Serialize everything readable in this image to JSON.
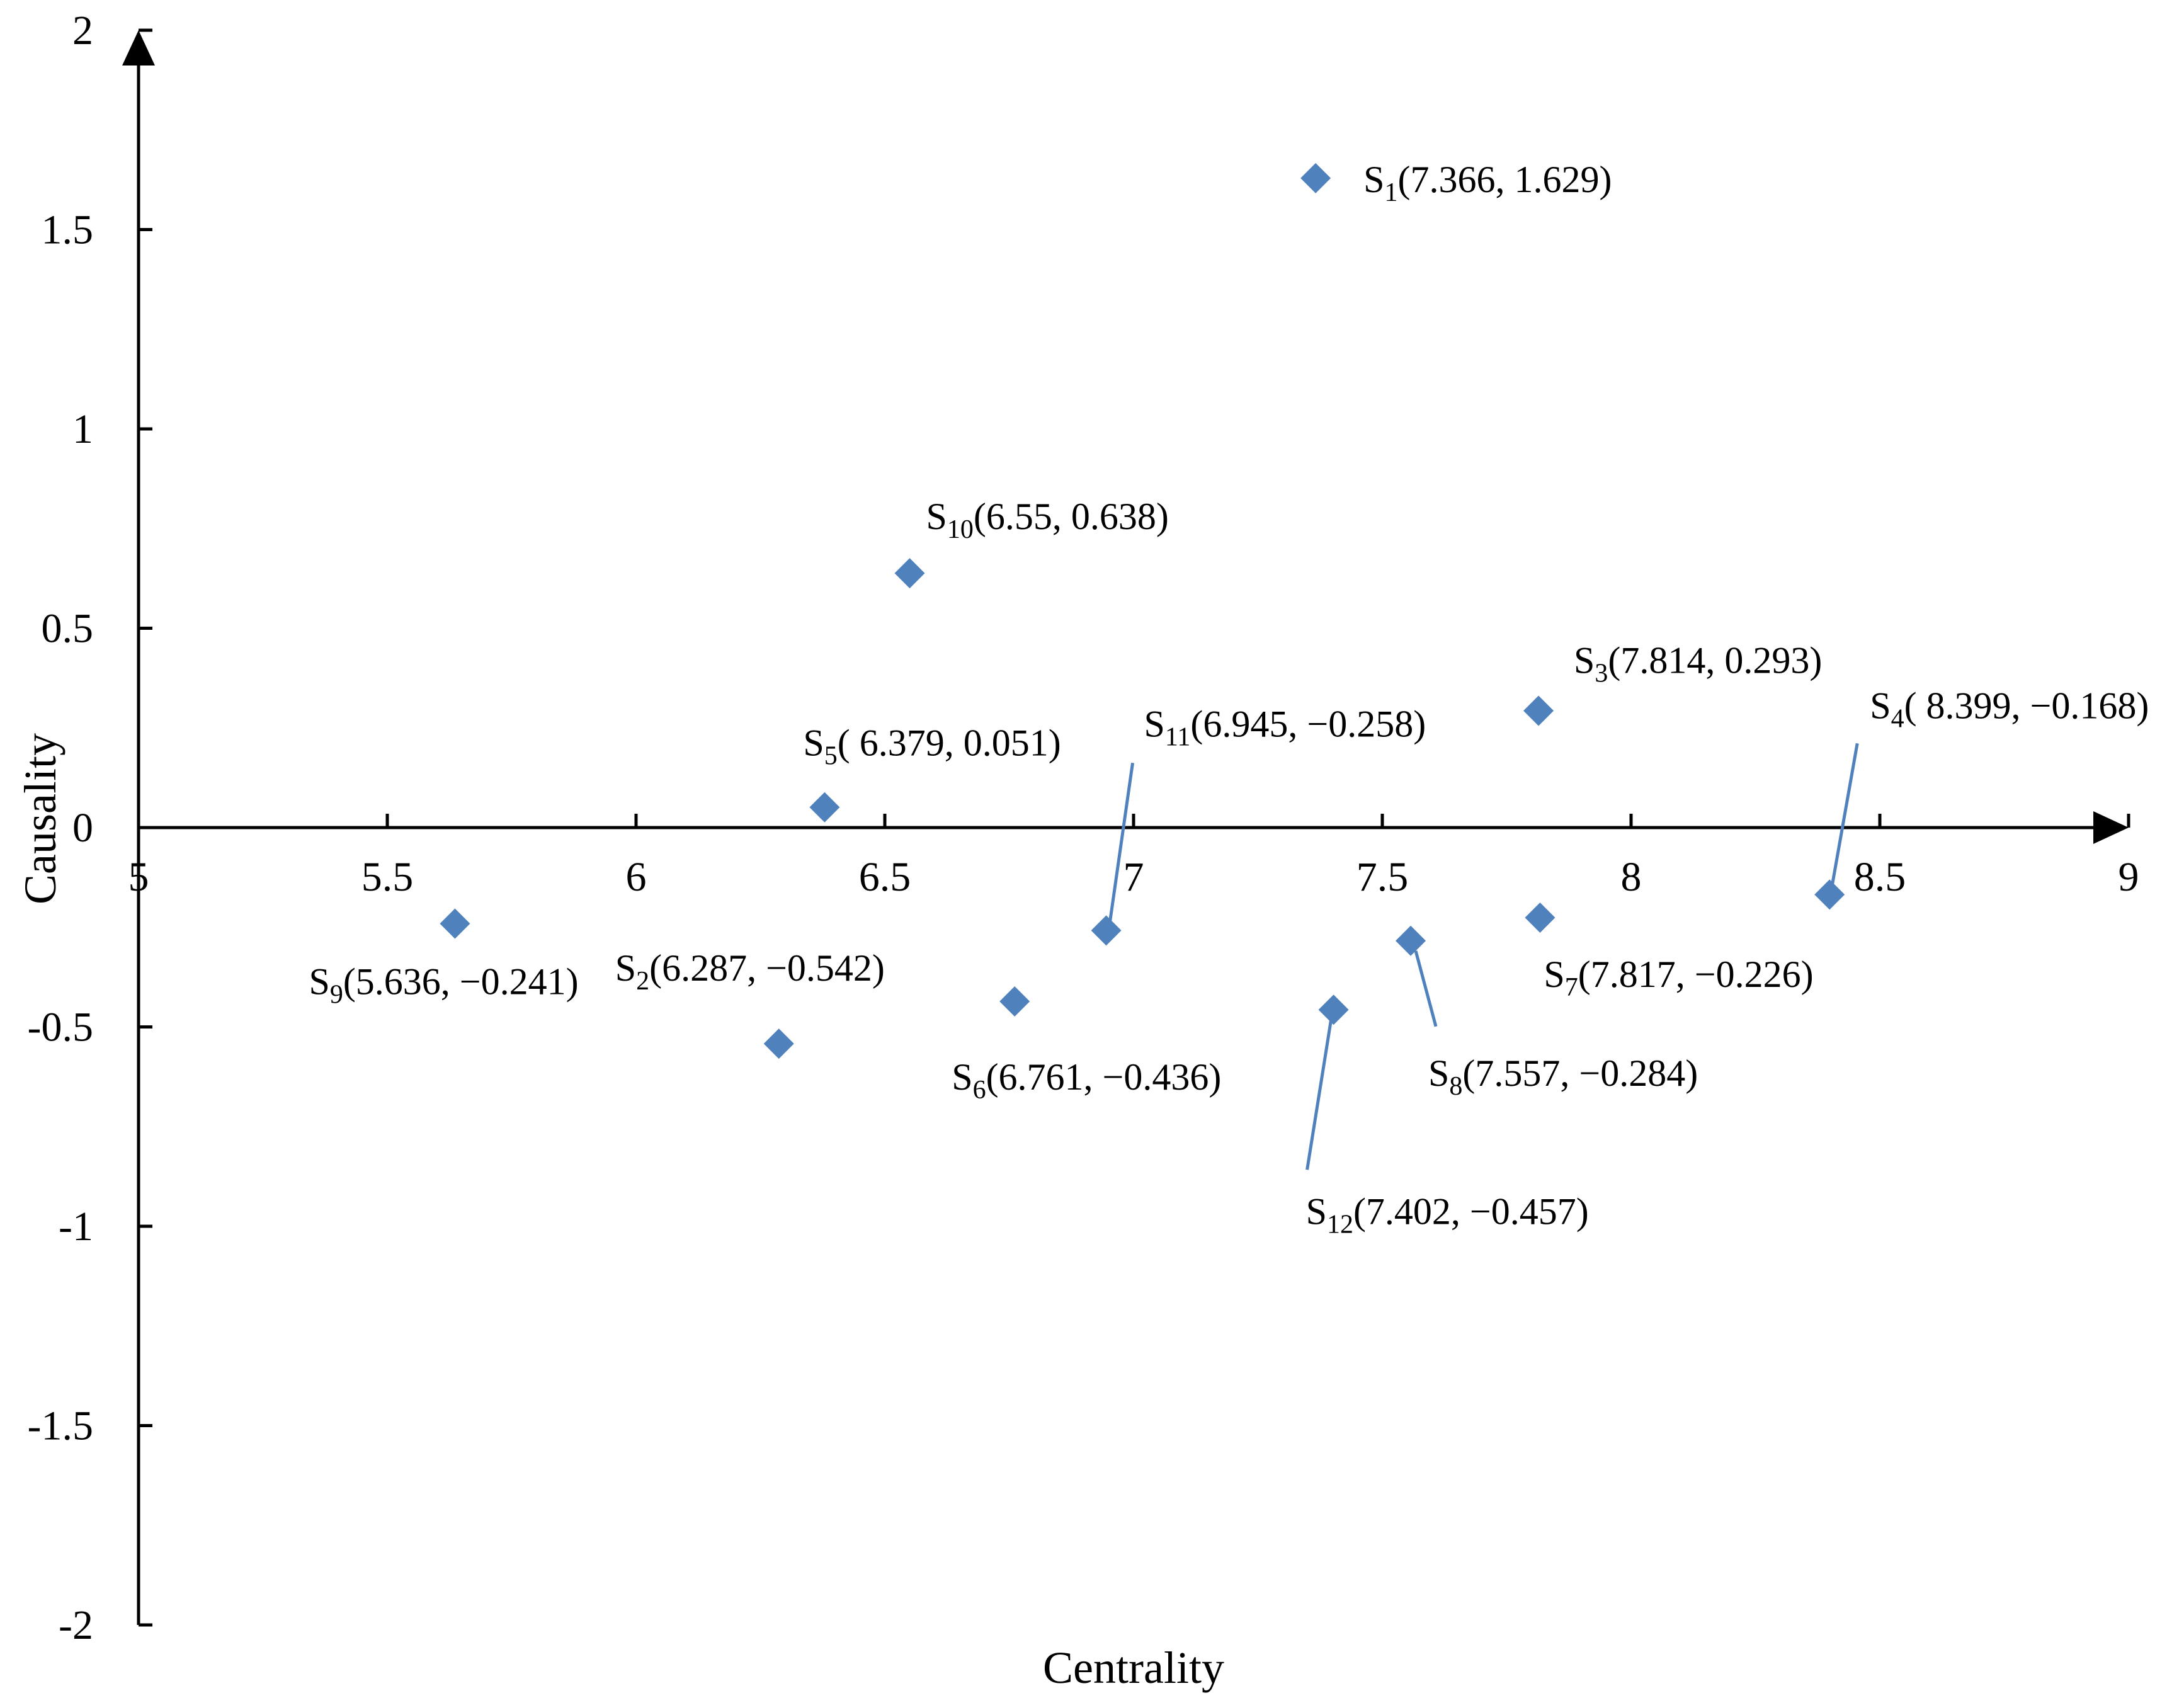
{
  "chart_data": {
    "type": "scatter",
    "title": "",
    "xlabel": "Centrality",
    "ylabel": "Causality",
    "xlim": [
      5,
      9
    ],
    "ylim": [
      -2,
      2
    ],
    "x_ticks": [
      "5",
      "5.5",
      "6",
      "6.5",
      "7",
      "7.5",
      "8",
      "8.5",
      "9"
    ],
    "x_tick_values": [
      5,
      5.5,
      6,
      6.5,
      7,
      7.5,
      8,
      8.5,
      9
    ],
    "y_ticks": [
      "2",
      "1.5",
      "1",
      "0.5",
      "0",
      "-0.5",
      "-1",
      "-1.5",
      "-2"
    ],
    "y_tick_values": [
      2,
      1.5,
      1,
      0.5,
      0,
      -0.5,
      -1,
      -1.5,
      -2
    ],
    "grid": false,
    "marker": "diamond",
    "marker_color": "#4f81bd",
    "leader_color": "#4f81bd",
    "points": [
      {
        "name": "S",
        "sub": "1",
        "x": 7.366,
        "y": 1.629,
        "label": "(7.366, 1.629)"
      },
      {
        "name": "S",
        "sub": "2",
        "x": 6.287,
        "y": -0.542,
        "label": "(6.287, −0.542)"
      },
      {
        "name": "S",
        "sub": "3",
        "x": 7.814,
        "y": 0.293,
        "label": "(7.814, 0.293)"
      },
      {
        "name": "S",
        "sub": "4",
        "x": 8.399,
        "y": -0.168,
        "label": "( 8.399, −0.168)"
      },
      {
        "name": "S",
        "sub": "5",
        "x": 6.379,
        "y": 0.051,
        "label": "( 6.379, 0.051)"
      },
      {
        "name": "S",
        "sub": "6",
        "x": 6.761,
        "y": -0.436,
        "label": "(6.761, −0.436)"
      },
      {
        "name": "S",
        "sub": "7",
        "x": 7.817,
        "y": -0.226,
        "label": "(7.817, −0.226)"
      },
      {
        "name": "S",
        "sub": "8",
        "x": 7.557,
        "y": -0.284,
        "label": "(7.557, −0.284)"
      },
      {
        "name": "S",
        "sub": "9",
        "x": 5.636,
        "y": -0.241,
        "label": "(5.636, −0.241)"
      },
      {
        "name": "S",
        "sub": "10",
        "x": 6.55,
        "y": 0.638,
        "label": "(6.55, 0.638)"
      },
      {
        "name": "S",
        "sub": "11",
        "x": 6.945,
        "y": -0.258,
        "label": "(6.945, −0.258)"
      },
      {
        "name": "S",
        "sub": "12",
        "x": 7.402,
        "y": -0.457,
        "label": "(7.402, −0.457)"
      }
    ]
  }
}
